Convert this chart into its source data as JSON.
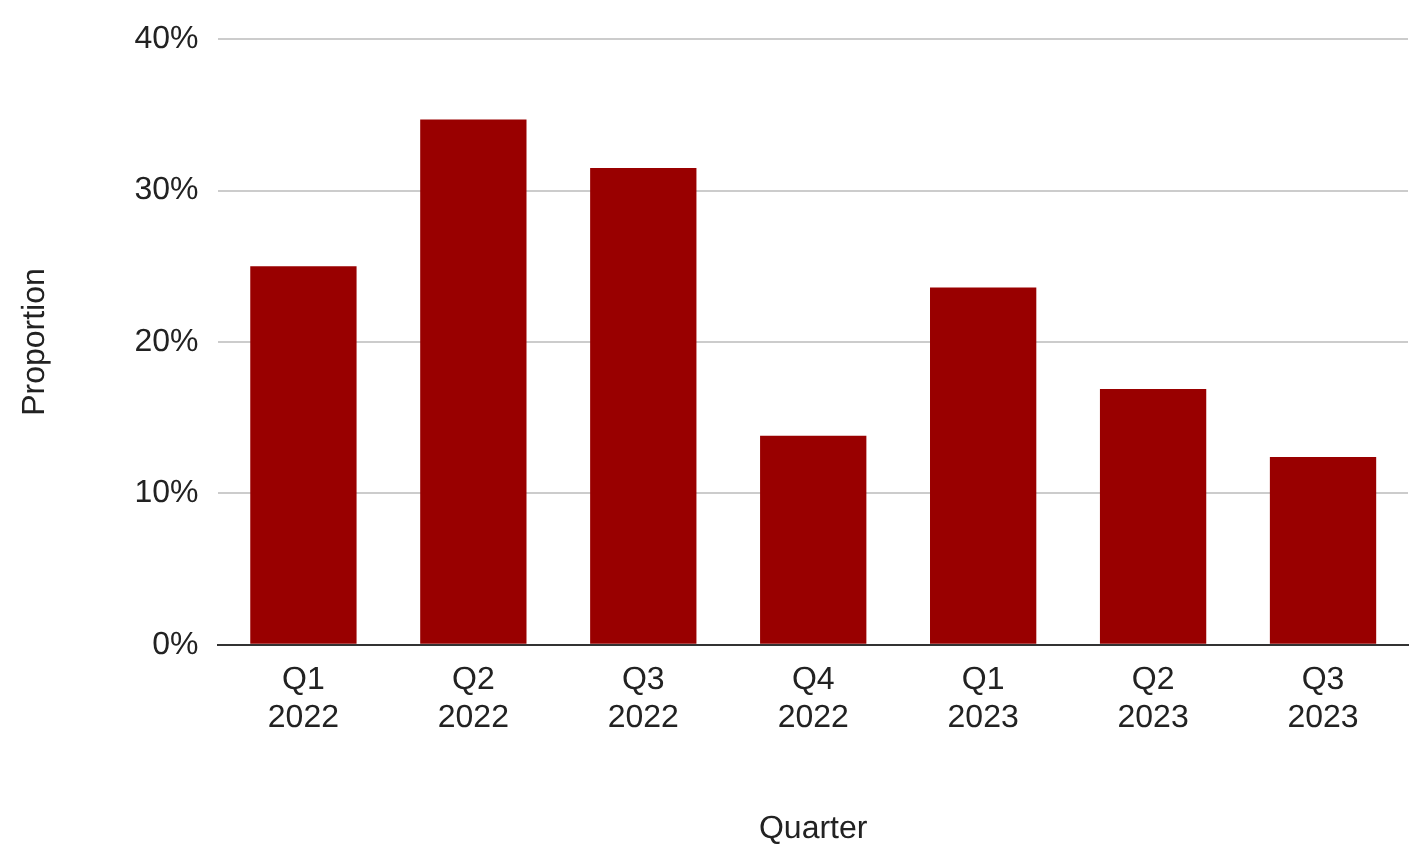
{
  "chart_data": {
    "type": "bar",
    "xlabel": "Quarter",
    "ylabel": "Proportion",
    "categories": [
      "Q1 2022",
      "Q2 2022",
      "Q3 2022",
      "Q4 2022",
      "Q1 2023",
      "Q2 2023",
      "Q3 2023"
    ],
    "values": [
      25.0,
      34.7,
      31.5,
      13.8,
      23.6,
      16.9,
      12.4
    ],
    "color": "#990000",
    "ylim": [
      0,
      40
    ],
    "yticks": [
      {
        "value": 0,
        "label": "0%"
      },
      {
        "value": 10,
        "label": "10%"
      },
      {
        "value": 20,
        "label": "20%"
      },
      {
        "value": 30,
        "label": "30%"
      },
      {
        "value": 40,
        "label": "40%"
      }
    ],
    "grid": "y",
    "legend": false
  }
}
